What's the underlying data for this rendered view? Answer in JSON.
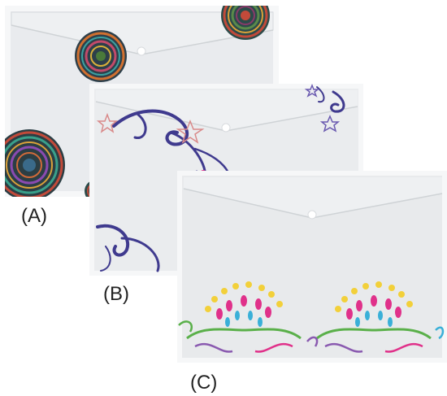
{
  "captions": {
    "a": "(A)",
    "b": "(B)",
    "c": "(C)"
  },
  "folders": [
    {
      "id": "A",
      "pattern": "mandala-circles",
      "colors": [
        "#2d5a55",
        "#c14a3a",
        "#d9a13a",
        "#5a7a3a",
        "#3a3a6a"
      ]
    },
    {
      "id": "B",
      "pattern": "purple-swirls-stars",
      "colors": [
        "#3e3a8c",
        "#d98a8a",
        "#6a5ab0"
      ]
    },
    {
      "id": "C",
      "pattern": "rainbow-floral",
      "colors": [
        "#f2d03a",
        "#e0318a",
        "#3ab0d8",
        "#5ab04a",
        "#8a5ab0"
      ]
    }
  ]
}
